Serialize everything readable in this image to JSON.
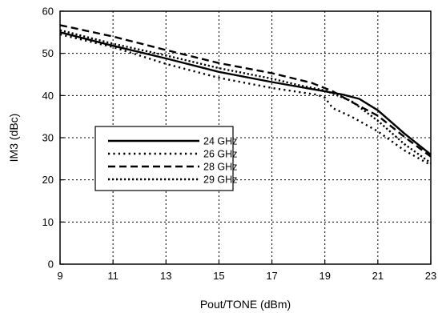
{
  "chart_data": {
    "type": "line",
    "title": "",
    "xlabel": "Pout/TONE (dBm)",
    "ylabel": "IM3 (dBc)",
    "xlim": [
      9,
      23
    ],
    "ylim": [
      0,
      60
    ],
    "xticks": [
      9,
      11,
      13,
      15,
      17,
      19,
      21,
      23
    ],
    "yticks": [
      0,
      10,
      20,
      30,
      40,
      50,
      60
    ],
    "grid": true,
    "legend_position": "center-left",
    "series": [
      {
        "name": "24 GHz",
        "style": "solid",
        "points": [
          [
            9,
            55
          ],
          [
            11,
            51.8
          ],
          [
            13,
            48.8
          ],
          [
            15,
            45.6
          ],
          [
            17,
            43.2
          ],
          [
            19,
            41
          ],
          [
            19.7,
            40.2
          ],
          [
            20.3,
            39.2
          ],
          [
            21,
            36.5
          ],
          [
            22,
            31
          ],
          [
            23,
            26
          ]
        ]
      },
      {
        "name": "26 GHz",
        "style": "dotted",
        "points": [
          [
            9,
            54.5
          ],
          [
            11,
            51.5
          ],
          [
            13,
            47.5
          ],
          [
            15,
            44.2
          ],
          [
            17,
            41.8
          ],
          [
            18.7,
            40.2
          ],
          [
            19,
            39.5
          ],
          [
            19.3,
            37
          ],
          [
            20,
            35
          ],
          [
            21,
            31.5
          ],
          [
            22,
            27
          ],
          [
            23,
            23.5
          ]
        ]
      },
      {
        "name": "28 GHz",
        "style": "dashed",
        "points": [
          [
            9,
            56.7
          ],
          [
            11,
            54
          ],
          [
            13,
            50.8
          ],
          [
            15,
            47.7
          ],
          [
            17,
            45.3
          ],
          [
            18.5,
            43
          ],
          [
            19.3,
            41
          ],
          [
            20,
            38.5
          ],
          [
            21,
            35.2
          ],
          [
            22,
            30.2
          ],
          [
            23,
            25.5
          ]
        ]
      },
      {
        "name": "29 GHz",
        "style": "dash-dot",
        "points": [
          [
            9,
            55.5
          ],
          [
            11,
            52.3
          ],
          [
            13,
            49.5
          ],
          [
            15,
            46.5
          ],
          [
            17,
            44
          ],
          [
            18,
            42.5
          ],
          [
            19,
            41.2
          ],
          [
            20,
            38.7
          ],
          [
            21,
            34
          ],
          [
            22,
            28.5
          ],
          [
            23,
            24
          ]
        ]
      }
    ]
  }
}
